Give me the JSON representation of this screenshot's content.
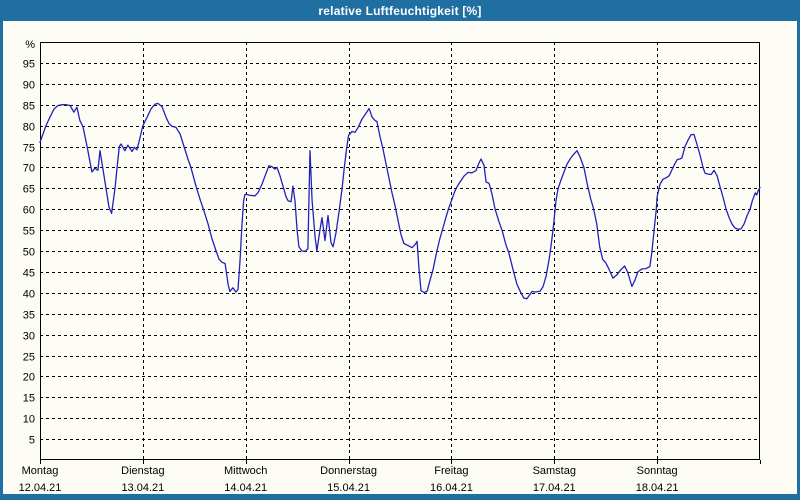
{
  "window": {
    "title": "relative Luftfeuchtigkeit [%]",
    "colors": {
      "chrome": "#1f6fa3",
      "title_text": "#ffffff",
      "content_background": "#fdfdf6",
      "line": "#2222bb",
      "grid": "#000000",
      "frame": "#000000",
      "text": "#000000"
    }
  },
  "chart_data": {
    "type": "line",
    "title": "relative Luftfeuchtigkeit [%]",
    "ylabel": "%",
    "unit_label": "%",
    "xlabel": "",
    "ylim": [
      0,
      100
    ],
    "yticks": [
      5,
      10,
      15,
      20,
      25,
      30,
      35,
      40,
      45,
      50,
      55,
      60,
      65,
      70,
      75,
      80,
      85,
      90,
      95
    ],
    "xlim_hours": [
      0,
      168
    ],
    "grid": "dashed",
    "legend": "none",
    "days": [
      {
        "name": "Montag",
        "date": "12.04.21"
      },
      {
        "name": "Dienstag",
        "date": "13.04.21"
      },
      {
        "name": "Mittwoch",
        "date": "14.04.21"
      },
      {
        "name": "Donnerstag",
        "date": "15.04.21"
      },
      {
        "name": "Freitag",
        "date": "16.04.21"
      },
      {
        "name": "Samstag",
        "date": "17.04.21"
      },
      {
        "name": "Sonntag",
        "date": "18.04.21"
      }
    ],
    "series": [
      {
        "name": "relative Luftfeuchtigkeit",
        "color": "#2222bb",
        "x_unit": "hours since Mon 12.04.21 00:00",
        "points": [
          [
            0,
            76
          ],
          [
            0.7,
            78
          ],
          [
            1.4,
            80
          ],
          [
            2.3,
            82
          ],
          [
            3.3,
            84
          ],
          [
            4.2,
            84.8
          ],
          [
            5.1,
            85
          ],
          [
            6.1,
            85
          ],
          [
            7,
            84.8
          ],
          [
            7.9,
            83.2
          ],
          [
            8.6,
            84.4
          ],
          [
            9.3,
            81.2
          ],
          [
            10,
            79.8
          ],
          [
            11,
            75
          ],
          [
            12.1,
            68.9
          ],
          [
            12.8,
            69.8
          ],
          [
            13.5,
            69.3
          ],
          [
            14,
            74
          ],
          [
            14.7,
            69.5
          ],
          [
            15.4,
            65
          ],
          [
            16.1,
            60.5
          ],
          [
            16.7,
            59
          ],
          [
            17.5,
            65
          ],
          [
            18,
            70
          ],
          [
            18.5,
            75
          ],
          [
            18.9,
            75.6
          ],
          [
            19.8,
            74
          ],
          [
            20.5,
            75.3
          ],
          [
            21.5,
            73.8
          ],
          [
            22,
            74.8
          ],
          [
            22.6,
            74.2
          ],
          [
            23.3,
            77
          ],
          [
            24,
            80
          ],
          [
            25,
            82
          ],
          [
            25.9,
            84
          ],
          [
            26.8,
            85.1
          ],
          [
            27.5,
            85.3
          ],
          [
            28.5,
            84.5
          ],
          [
            29.4,
            82
          ],
          [
            30.1,
            80.5
          ],
          [
            30.8,
            79.8
          ],
          [
            31.7,
            79.6
          ],
          [
            32.7,
            78
          ],
          [
            33.6,
            75
          ],
          [
            34.5,
            72
          ],
          [
            35.2,
            70
          ],
          [
            36.4,
            65.5
          ],
          [
            37.3,
            62.5
          ],
          [
            38.3,
            59.5
          ],
          [
            39.2,
            56.5
          ],
          [
            40.1,
            53
          ],
          [
            41.1,
            50
          ],
          [
            41.8,
            48
          ],
          [
            42.5,
            47.3
          ],
          [
            43.2,
            47
          ],
          [
            43.9,
            42
          ],
          [
            44.3,
            40.3
          ],
          [
            45,
            41.2
          ],
          [
            45.7,
            40.2
          ],
          [
            46.2,
            40.8
          ],
          [
            46.7,
            48
          ],
          [
            47.1,
            56
          ],
          [
            47.5,
            62
          ],
          [
            47.8,
            63.5
          ],
          [
            48,
            63.6
          ],
          [
            49,
            63.3
          ],
          [
            50.2,
            63.2
          ],
          [
            50.9,
            64
          ],
          [
            51.8,
            66
          ],
          [
            52.7,
            68.5
          ],
          [
            53.4,
            70.4
          ],
          [
            54.1,
            70.2
          ],
          [
            54.8,
            69.6
          ],
          [
            55.3,
            70
          ],
          [
            56,
            68
          ],
          [
            56.7,
            65.5
          ],
          [
            57.4,
            63
          ],
          [
            57.9,
            62
          ],
          [
            58.6,
            61.8
          ],
          [
            59,
            65.5
          ],
          [
            59.5,
            62
          ],
          [
            60,
            55
          ],
          [
            60.4,
            51
          ],
          [
            61.1,
            50
          ],
          [
            61.8,
            49.9
          ],
          [
            62.5,
            50.5
          ],
          [
            63,
            74
          ],
          [
            63.5,
            62
          ],
          [
            64.2,
            53.3
          ],
          [
            64.6,
            50
          ],
          [
            65.3,
            55
          ],
          [
            65.8,
            58
          ],
          [
            66.5,
            52.5
          ],
          [
            67.2,
            58.5
          ],
          [
            67.9,
            52
          ],
          [
            68.4,
            51
          ],
          [
            69.1,
            54.5
          ],
          [
            69.8,
            59.5
          ],
          [
            70.5,
            65
          ],
          [
            71,
            70
          ],
          [
            71.6,
            75
          ],
          [
            72,
            77.7
          ],
          [
            72.8,
            78.6
          ],
          [
            73.5,
            78.4
          ],
          [
            74.2,
            79.5
          ],
          [
            75.1,
            81.5
          ],
          [
            76.1,
            83
          ],
          [
            76.8,
            84.1
          ],
          [
            77.5,
            82
          ],
          [
            78.2,
            81.2
          ],
          [
            78.6,
            81
          ],
          [
            79.3,
            77.5
          ],
          [
            80,
            74.5
          ],
          [
            80.7,
            71
          ],
          [
            81.4,
            67.5
          ],
          [
            82.1,
            64
          ],
          [
            82.8,
            61
          ],
          [
            83.5,
            57.5
          ],
          [
            84.2,
            54
          ],
          [
            84.9,
            51.8
          ],
          [
            85.9,
            51.3
          ],
          [
            86.8,
            50.8
          ],
          [
            87.5,
            51.5
          ],
          [
            88,
            52.3
          ],
          [
            88.4,
            46
          ],
          [
            88.9,
            40.5
          ],
          [
            89.6,
            40.1
          ],
          [
            90.3,
            40.3
          ],
          [
            91,
            43
          ],
          [
            91.7,
            45.5
          ],
          [
            92.6,
            50
          ],
          [
            93.3,
            53
          ],
          [
            94,
            55.5
          ],
          [
            94.7,
            58
          ],
          [
            95.3,
            60
          ],
          [
            96,
            62
          ],
          [
            96.7,
            64
          ],
          [
            97.1,
            65
          ],
          [
            98,
            66.5
          ],
          [
            99,
            68
          ],
          [
            99.9,
            68.8
          ],
          [
            100.8,
            68.7
          ],
          [
            101.7,
            69.2
          ],
          [
            102.4,
            71
          ],
          [
            102.9,
            72
          ],
          [
            103.6,
            70.5
          ],
          [
            104.1,
            66.5
          ],
          [
            104.8,
            66.2
          ],
          [
            105.5,
            63.5
          ],
          [
            106.2,
            60
          ],
          [
            107.1,
            57
          ],
          [
            107.8,
            55
          ],
          [
            108.7,
            51.5
          ],
          [
            109.4,
            49.5
          ],
          [
            110.4,
            45.5
          ],
          [
            111.3,
            42
          ],
          [
            112.2,
            40
          ],
          [
            112.9,
            38.7
          ],
          [
            113.6,
            38.6
          ],
          [
            114.1,
            39.3
          ],
          [
            114.8,
            40.3
          ],
          [
            115.7,
            40.2
          ],
          [
            116.7,
            40.4
          ],
          [
            117.4,
            41.5
          ],
          [
            118.1,
            44
          ],
          [
            118.8,
            48
          ],
          [
            119.2,
            51
          ],
          [
            119.7,
            55
          ],
          [
            120,
            58
          ],
          [
            120.4,
            62
          ],
          [
            120.9,
            65
          ],
          [
            121.6,
            67
          ],
          [
            122.3,
            69
          ],
          [
            123,
            70.8
          ],
          [
            123.7,
            72
          ],
          [
            124.4,
            73
          ],
          [
            125.3,
            74
          ],
          [
            126,
            72.5
          ],
          [
            126.9,
            70
          ],
          [
            127.8,
            65.5
          ],
          [
            128.5,
            62.5
          ],
          [
            129.2,
            60
          ],
          [
            129.9,
            56.5
          ],
          [
            130.6,
            51
          ],
          [
            131.3,
            48
          ],
          [
            132,
            47.2
          ],
          [
            132.7,
            45.8
          ],
          [
            133.7,
            43.5
          ],
          [
            134.6,
            44.3
          ],
          [
            135.5,
            45.5
          ],
          [
            136.4,
            46.4
          ],
          [
            137.1,
            45
          ],
          [
            138.1,
            41.5
          ],
          [
            138.8,
            43
          ],
          [
            139.5,
            45
          ],
          [
            140.4,
            45.7
          ],
          [
            141.4,
            45.8
          ],
          [
            142.3,
            46.3
          ],
          [
            142.8,
            50
          ],
          [
            143.3,
            55
          ],
          [
            143.8,
            60
          ],
          [
            144,
            63
          ],
          [
            144.7,
            66
          ],
          [
            145.4,
            67.2
          ],
          [
            146.1,
            67.5
          ],
          [
            146.8,
            68
          ],
          [
            147.5,
            69.5
          ],
          [
            148.2,
            71
          ],
          [
            148.7,
            71.9
          ],
          [
            149.3,
            72
          ],
          [
            149.8,
            72.3
          ],
          [
            150.5,
            75
          ],
          [
            151.2,
            76.5
          ],
          [
            151.9,
            77.8
          ],
          [
            152.6,
            77.9
          ],
          [
            153.3,
            75.5
          ],
          [
            154,
            73
          ],
          [
            154.7,
            70
          ],
          [
            155.2,
            68.6
          ],
          [
            155.9,
            68.4
          ],
          [
            156.6,
            68.3
          ],
          [
            157.3,
            69.3
          ],
          [
            158,
            68
          ],
          [
            158.7,
            65.3
          ],
          [
            159.4,
            62.8
          ],
          [
            160.1,
            60
          ],
          [
            160.8,
            58
          ],
          [
            161.5,
            56.4
          ],
          [
            162.2,
            55.5
          ],
          [
            162.9,
            55.2
          ],
          [
            163.6,
            55.3
          ],
          [
            164.3,
            56.5
          ],
          [
            165,
            58.5
          ],
          [
            165.7,
            60
          ],
          [
            166.2,
            62
          ],
          [
            166.9,
            63.9
          ],
          [
            167.2,
            63.4
          ],
          [
            167.6,
            64.5
          ],
          [
            168,
            65.2
          ]
        ]
      }
    ]
  }
}
